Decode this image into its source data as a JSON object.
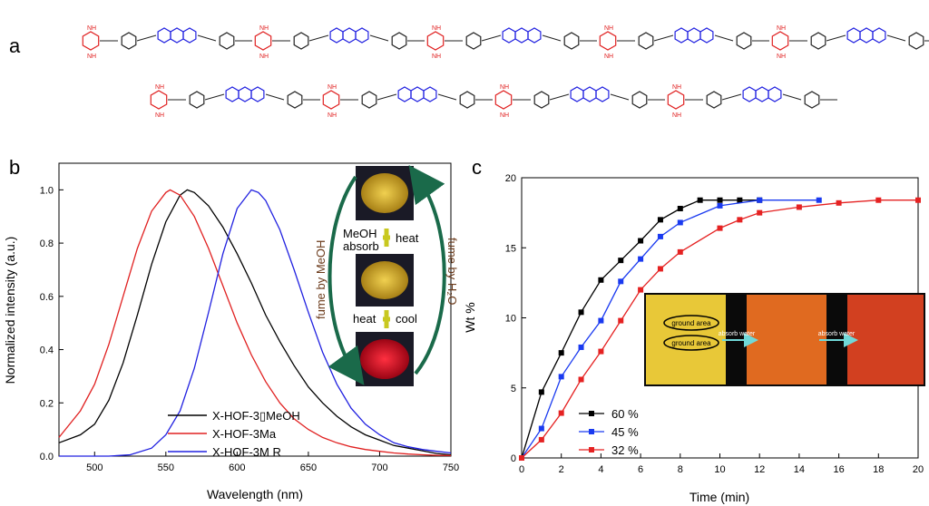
{
  "panels": {
    "a": "a",
    "b": "b",
    "c": "c"
  },
  "structure": {
    "atom_N": "N",
    "atom_H": "H",
    "colors": {
      "melamine": "#e02020",
      "anthracene": "#2020e0",
      "linker": "#222222"
    }
  },
  "inset_b": {
    "step1": "MeOH",
    "step1b": "absorb",
    "step2": "heat",
    "step3": "heat",
    "step4": "cool",
    "left_arrow": "fume by MeOH",
    "right_arrow": "fume by H₂O",
    "colors": {
      "yellow": "#d9b020",
      "red": "#d81020",
      "arrow": "#1a6a4a"
    }
  },
  "inset_c": {
    "label1": "ground area",
    "label2": "ground area",
    "arrow1": "absorb water",
    "arrow2": "absorb water",
    "colors": {
      "yellow": "#e8c838",
      "orange": "#e06a20",
      "red": "#d24020",
      "arrow": "#70d8d8"
    }
  },
  "chart_data": [
    {
      "type": "line",
      "xlabel": "Wavelength (nm)",
      "ylabel": "Normalized intensity (a.u.)",
      "xlim": [
        475,
        750
      ],
      "ylim": [
        0,
        1.1
      ],
      "xticks": [
        "500",
        "550",
        "600",
        "650",
        "700",
        "750"
      ],
      "yticks": [
        "0.0",
        "0.2",
        "0.4",
        "0.6",
        "0.8",
        "1.0"
      ],
      "legend_position": "bottom-center",
      "series": [
        {
          "name": "X-HOF-3▯MeOH",
          "color": "#000000",
          "x": [
            475,
            490,
            500,
            510,
            520,
            530,
            540,
            550,
            560,
            565,
            570,
            580,
            590,
            600,
            610,
            620,
            630,
            640,
            650,
            660,
            670,
            680,
            690,
            700,
            710,
            720,
            730,
            740,
            750
          ],
          "y": [
            0.05,
            0.08,
            0.12,
            0.21,
            0.35,
            0.53,
            0.72,
            0.88,
            0.98,
            1.0,
            0.99,
            0.94,
            0.86,
            0.76,
            0.65,
            0.53,
            0.43,
            0.34,
            0.26,
            0.2,
            0.15,
            0.11,
            0.08,
            0.06,
            0.04,
            0.03,
            0.02,
            0.01,
            0.005
          ]
        },
        {
          "name": "X-HOF-3Ma",
          "color": "#e02020",
          "x": [
            475,
            490,
            500,
            510,
            520,
            530,
            540,
            550,
            553,
            560,
            570,
            580,
            590,
            600,
            610,
            620,
            630,
            640,
            650,
            660,
            670,
            680,
            690,
            700,
            710,
            720,
            730,
            740,
            750
          ],
          "y": [
            0.07,
            0.17,
            0.27,
            0.42,
            0.6,
            0.78,
            0.92,
            0.99,
            1.0,
            0.98,
            0.9,
            0.78,
            0.64,
            0.5,
            0.38,
            0.28,
            0.2,
            0.14,
            0.1,
            0.07,
            0.05,
            0.035,
            0.025,
            0.018,
            0.012,
            0.008,
            0.005,
            0.003,
            0.002
          ]
        },
        {
          "name": "X-HOF-3M R",
          "color": "#2020e0",
          "x": [
            475,
            510,
            525,
            540,
            550,
            560,
            570,
            580,
            590,
            600,
            610,
            615,
            620,
            630,
            640,
            650,
            660,
            670,
            680,
            690,
            700,
            710,
            720,
            730,
            740,
            750
          ],
          "y": [
            0,
            0,
            0.005,
            0.03,
            0.08,
            0.17,
            0.33,
            0.54,
            0.76,
            0.93,
            1.0,
            0.99,
            0.96,
            0.85,
            0.7,
            0.54,
            0.39,
            0.27,
            0.18,
            0.12,
            0.08,
            0.05,
            0.035,
            0.025,
            0.018,
            0.012
          ]
        }
      ]
    },
    {
      "type": "line",
      "xlabel": "Time (min)",
      "ylabel": "Wt %",
      "xlim": [
        0,
        20
      ],
      "ylim": [
        0,
        20
      ],
      "xticks": [
        "0",
        "2",
        "4",
        "6",
        "8",
        "10",
        "12",
        "14",
        "16",
        "18",
        "20"
      ],
      "yticks": [
        "0",
        "5",
        "10",
        "15",
        "20"
      ],
      "legend_position": "bottom-left",
      "series": [
        {
          "name": "60 %",
          "color": "#000000",
          "x": [
            0,
            1,
            2,
            3,
            4,
            5,
            6,
            7,
            8,
            9,
            10,
            11,
            12
          ],
          "y": [
            0,
            4.7,
            7.5,
            10.4,
            12.7,
            14.1,
            15.5,
            17.0,
            17.8,
            18.4,
            18.4,
            18.4,
            18.4
          ]
        },
        {
          "name": "45 %",
          "color": "#1a3af0",
          "x": [
            0,
            1,
            2,
            3,
            4,
            5,
            6,
            7,
            8,
            10,
            12,
            15
          ],
          "y": [
            0,
            2.1,
            5.8,
            7.9,
            9.8,
            12.6,
            14.2,
            15.8,
            16.8,
            18.0,
            18.4,
            18.4
          ]
        },
        {
          "name": "32 %",
          "color": "#e52222",
          "x": [
            0,
            1,
            2,
            3,
            4,
            5,
            6,
            7,
            8,
            10,
            11,
            12,
            14,
            16,
            18,
            20
          ],
          "y": [
            0,
            1.3,
            3.2,
            5.6,
            7.6,
            9.8,
            12.0,
            13.5,
            14.7,
            16.4,
            17.0,
            17.5,
            17.9,
            18.2,
            18.4,
            18.4
          ]
        }
      ]
    }
  ]
}
